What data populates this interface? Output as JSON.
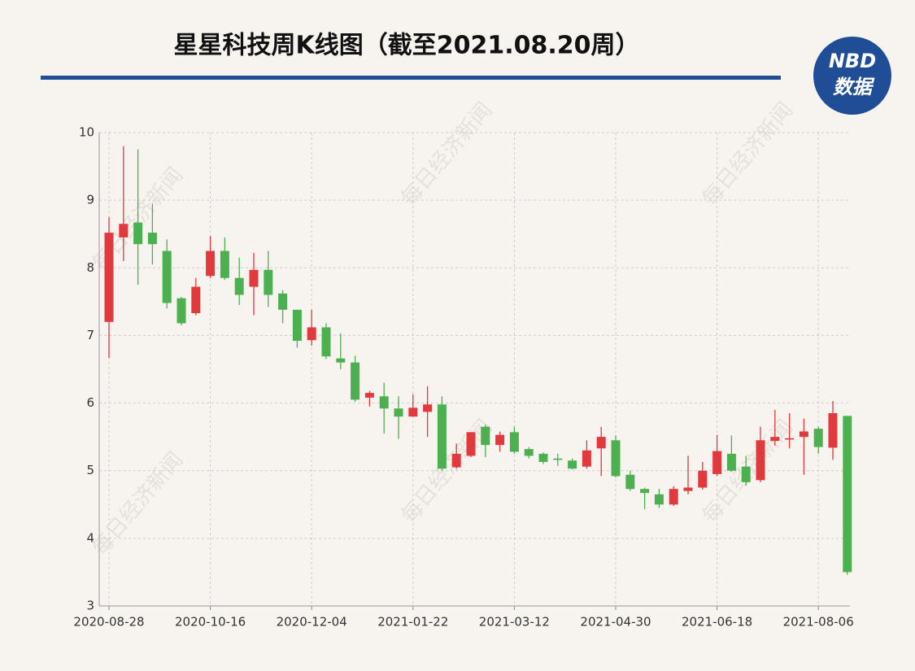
{
  "chart_data": {
    "type": "candlestick",
    "title": "星星科技周K线图（截至2021.08.20周）",
    "logo": {
      "top": "NBD",
      "bottom": "数据"
    },
    "watermark": "每日经济新闻",
    "categories": [
      "2020-08-28",
      null,
      null,
      null,
      null,
      null,
      null,
      "2020-10-16",
      null,
      null,
      null,
      null,
      null,
      null,
      "2020-12-04",
      null,
      null,
      null,
      null,
      null,
      null,
      "2021-01-22",
      null,
      null,
      null,
      null,
      null,
      null,
      "2021-03-12",
      null,
      null,
      null,
      null,
      null,
      null,
      "2021-04-30",
      null,
      null,
      null,
      null,
      null,
      null,
      "2021-06-18",
      null,
      null,
      null,
      null,
      null,
      null,
      "2021-08-06",
      null,
      null
    ],
    "open": [
      7.2,
      8.45,
      8.67,
      8.52,
      8.25,
      7.55,
      7.33,
      7.88,
      8.25,
      7.85,
      7.72,
      7.97,
      7.62,
      7.38,
      6.93,
      7.12,
      6.66,
      6.6,
      6.08,
      6.1,
      5.92,
      5.8,
      5.87,
      5.98,
      5.05,
      5.22,
      5.65,
      5.38,
      5.57,
      5.32,
      5.25,
      5.18,
      5.15,
      5.06,
      5.33,
      5.45,
      4.94,
      4.73,
      4.65,
      4.5,
      4.7,
      4.75,
      4.95,
      5.25,
      5.06,
      4.86,
      5.44,
      5.46,
      5.5,
      5.62,
      5.34,
      5.81
    ],
    "high": [
      8.75,
      9.8,
      9.75,
      8.95,
      8.42,
      7.57,
      7.85,
      8.47,
      8.45,
      8.15,
      8.22,
      8.25,
      7.67,
      7.38,
      7.38,
      7.18,
      7.03,
      6.7,
      6.18,
      6.3,
      6.1,
      6.13,
      6.25,
      6.1,
      5.4,
      5.57,
      5.68,
      5.58,
      5.65,
      5.35,
      5.27,
      5.25,
      5.18,
      5.45,
      5.65,
      5.52,
      5.0,
      4.75,
      4.73,
      4.77,
      5.22,
      5.13,
      5.53,
      5.52,
      5.22,
      5.65,
      5.9,
      5.85,
      5.77,
      5.65,
      6.03,
      5.81
    ],
    "low": [
      6.67,
      8.1,
      7.75,
      8.05,
      7.4,
      7.15,
      7.3,
      7.85,
      7.82,
      7.45,
      7.3,
      7.42,
      7.18,
      6.82,
      6.85,
      6.65,
      6.5,
      6.02,
      5.95,
      5.55,
      5.47,
      5.8,
      5.5,
      5.0,
      5.03,
      5.2,
      5.2,
      5.28,
      5.25,
      5.18,
      5.1,
      5.07,
      5.02,
      5.03,
      4.92,
      4.9,
      4.7,
      4.43,
      4.45,
      4.48,
      4.65,
      4.72,
      4.92,
      4.98,
      4.78,
      4.83,
      5.37,
      5.33,
      4.94,
      5.25,
      5.16,
      3.46
    ],
    "close": [
      8.52,
      8.65,
      8.35,
      8.35,
      7.48,
      7.18,
      7.72,
      8.25,
      7.85,
      7.6,
      7.97,
      7.6,
      7.38,
      6.92,
      7.12,
      6.69,
      6.6,
      6.05,
      6.15,
      5.92,
      5.8,
      5.93,
      5.98,
      5.03,
      5.25,
      5.57,
      5.38,
      5.53,
      5.28,
      5.22,
      5.13,
      5.16,
      5.03,
      5.3,
      5.5,
      4.92,
      4.73,
      4.67,
      4.5,
      4.73,
      4.75,
      5.0,
      5.29,
      5.0,
      4.83,
      5.45,
      5.5,
      5.48,
      5.58,
      5.35,
      5.85,
      3.5
    ],
    "up_color": "#e0393e",
    "down_color": "#4caf50",
    "ylim": [
      3,
      10
    ],
    "yticks": [
      3,
      4,
      5,
      6,
      7,
      8,
      9,
      10
    ],
    "grid": true
  }
}
